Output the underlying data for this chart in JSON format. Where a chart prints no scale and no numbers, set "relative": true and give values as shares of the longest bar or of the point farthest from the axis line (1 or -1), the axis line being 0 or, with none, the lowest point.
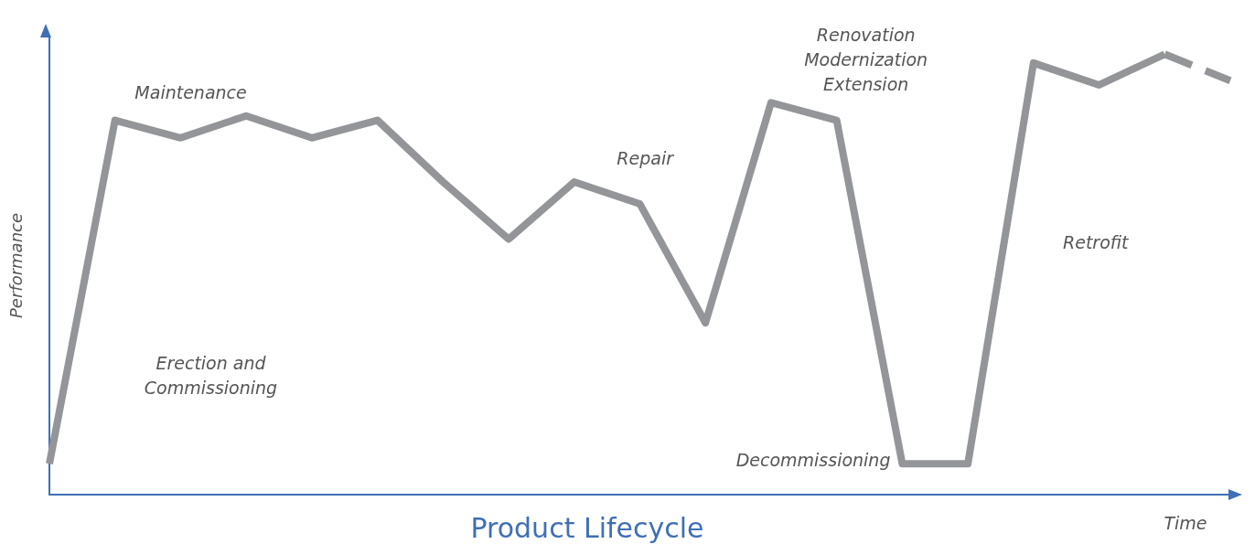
{
  "chart_data": {
    "type": "line",
    "title": "Product Lifecycle",
    "xlabel": "Time",
    "ylabel": "Performance",
    "relative": true,
    "tick_labels": false,
    "grid": false,
    "marker": "none",
    "categories": [
      null,
      null,
      null,
      null,
      null,
      null,
      null,
      null,
      null,
      null,
      null,
      null,
      null,
      null,
      null,
      null,
      null,
      null,
      null
    ],
    "series": [
      {
        "color": "#939598",
        "line_style": "solid",
        "values": [
          0.07,
          0.85,
          0.81,
          0.86,
          0.81,
          0.85,
          0.71,
          0.58,
          0.71,
          0.66,
          0.39,
          0.89,
          0.85,
          0.07,
          0.07,
          0.98,
          0.93,
          1,
          null
        ]
      },
      {
        "color": "#939598",
        "line_style": "dashed",
        "values": [
          null,
          null,
          null,
          null,
          null,
          null,
          null,
          null,
          null,
          null,
          null,
          null,
          null,
          null,
          null,
          null,
          null,
          1,
          0.94
        ]
      }
    ],
    "annotations": [
      "Maintenance",
      "Erection and\nCommissioning",
      "Repair",
      "Renovation\nModernization\nExtension",
      "Retrofit",
      "Decommissioning"
    ]
  }
}
